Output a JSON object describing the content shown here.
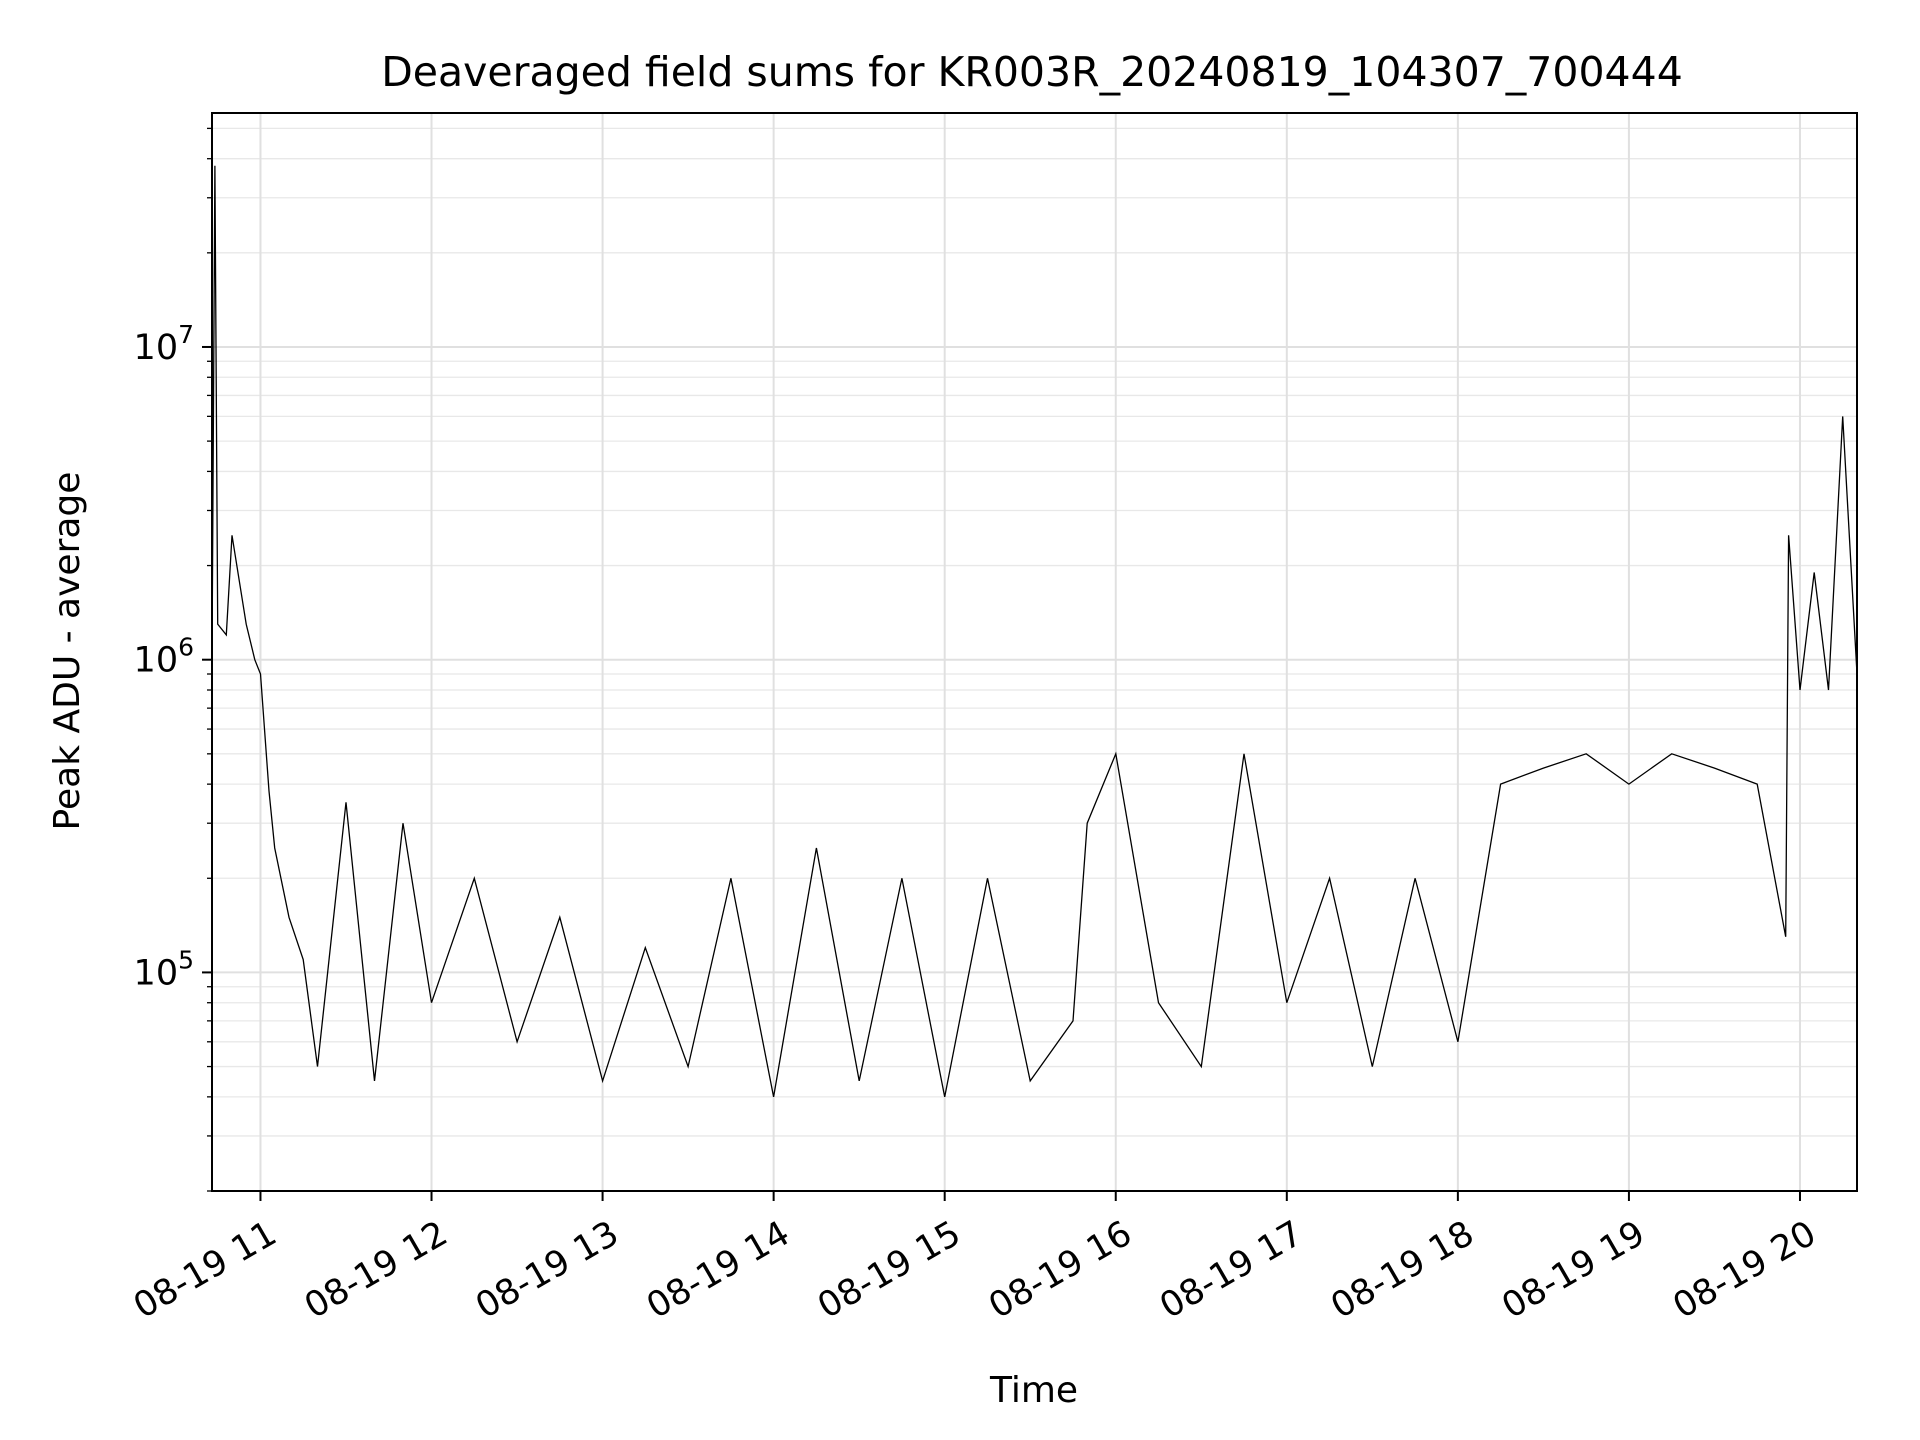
{
  "chart_data": {
    "type": "line",
    "title": "Deaveraged field sums for KR003R_20240819_104307_700444",
    "xlabel": "Time",
    "ylabel": "Peak ADU - average",
    "y_scale": "log",
    "ylim": [
      20000,
      56000000
    ],
    "xlim": [
      "2024-08-19 10:43",
      "2024-08-19 20:20"
    ],
    "grid": true,
    "line_color": "#000000",
    "x_ticks": [
      {
        "label": "08-19 11",
        "time": "2024-08-19 11:00"
      },
      {
        "label": "08-19 12",
        "time": "2024-08-19 12:00"
      },
      {
        "label": "08-19 13",
        "time": "2024-08-19 13:00"
      },
      {
        "label": "08-19 14",
        "time": "2024-08-19 14:00"
      },
      {
        "label": "08-19 15",
        "time": "2024-08-19 15:00"
      },
      {
        "label": "08-19 16",
        "time": "2024-08-19 16:00"
      },
      {
        "label": "08-19 17",
        "time": "2024-08-19 17:00"
      },
      {
        "label": "08-19 18",
        "time": "2024-08-19 18:00"
      },
      {
        "label": "08-19 19",
        "time": "2024-08-19 19:00"
      },
      {
        "label": "08-19 20",
        "time": "2024-08-19 20:00"
      }
    ],
    "y_ticks": [
      {
        "base": "10",
        "exp": "5",
        "value": 100000
      },
      {
        "base": "10",
        "exp": "6",
        "value": 1000000
      },
      {
        "base": "10",
        "exp": "7",
        "value": 10000000
      }
    ],
    "series": [
      {
        "points": [
          [
            "2024-08-19 10:43",
            1000000
          ],
          [
            "2024-08-19 10:44",
            38000000
          ],
          [
            "2024-08-19 10:45",
            1300000
          ],
          [
            "2024-08-19 10:48",
            1200000
          ],
          [
            "2024-08-19 10:50",
            2500000
          ],
          [
            "2024-08-19 10:55",
            1300000
          ],
          [
            "2024-08-19 10:58",
            1000000
          ],
          [
            "2024-08-19 11:00",
            900000
          ],
          [
            "2024-08-19 11:03",
            380000
          ],
          [
            "2024-08-19 11:05",
            250000
          ],
          [
            "2024-08-19 11:10",
            150000
          ],
          [
            "2024-08-19 11:15",
            110000
          ],
          [
            "2024-08-19 11:20",
            50000
          ],
          [
            "2024-08-19 11:30",
            350000
          ],
          [
            "2024-08-19 11:40",
            45000
          ],
          [
            "2024-08-19 11:50",
            300000
          ],
          [
            "2024-08-19 12:00",
            80000
          ],
          [
            "2024-08-19 12:15",
            200000
          ],
          [
            "2024-08-19 12:30",
            60000
          ],
          [
            "2024-08-19 12:45",
            150000
          ],
          [
            "2024-08-19 13:00",
            45000
          ],
          [
            "2024-08-19 13:15",
            120000
          ],
          [
            "2024-08-19 13:30",
            50000
          ],
          [
            "2024-08-19 13:45",
            200000
          ],
          [
            "2024-08-19 14:00",
            40000
          ],
          [
            "2024-08-19 14:15",
            250000
          ],
          [
            "2024-08-19 14:30",
            45000
          ],
          [
            "2024-08-19 14:45",
            200000
          ],
          [
            "2024-08-19 15:00",
            40000
          ],
          [
            "2024-08-19 15:15",
            200000
          ],
          [
            "2024-08-19 15:30",
            45000
          ],
          [
            "2024-08-19 15:45",
            70000
          ],
          [
            "2024-08-19 15:50",
            300000
          ],
          [
            "2024-08-19 16:00",
            500000
          ],
          [
            "2024-08-19 16:15",
            80000
          ],
          [
            "2024-08-19 16:30",
            50000
          ],
          [
            "2024-08-19 16:45",
            500000
          ],
          [
            "2024-08-19 17:00",
            80000
          ],
          [
            "2024-08-19 17:15",
            200000
          ],
          [
            "2024-08-19 17:30",
            50000
          ],
          [
            "2024-08-19 17:45",
            200000
          ],
          [
            "2024-08-19 18:00",
            60000
          ],
          [
            "2024-08-19 18:15",
            400000
          ],
          [
            "2024-08-19 18:30",
            450000
          ],
          [
            "2024-08-19 18:45",
            500000
          ],
          [
            "2024-08-19 19:00",
            400000
          ],
          [
            "2024-08-19 19:15",
            500000
          ],
          [
            "2024-08-19 19:30",
            450000
          ],
          [
            "2024-08-19 19:45",
            400000
          ],
          [
            "2024-08-19 19:55",
            130000
          ],
          [
            "2024-08-19 19:56",
            2500000
          ],
          [
            "2024-08-19 20:00",
            800000
          ],
          [
            "2024-08-19 20:05",
            1900000
          ],
          [
            "2024-08-19 20:10",
            800000
          ],
          [
            "2024-08-19 20:15",
            6000000
          ],
          [
            "2024-08-19 20:20",
            900000
          ]
        ]
      }
    ]
  }
}
